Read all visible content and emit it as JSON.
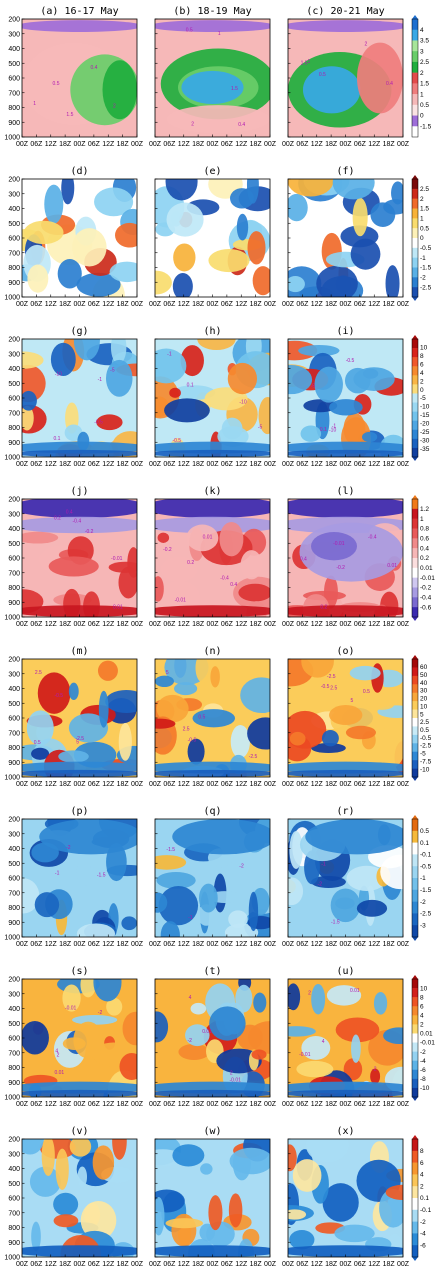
{
  "figure": {
    "columns": [
      "(a) 16-17 May",
      "(b) 18-19 May",
      "(c) 20-21 May"
    ],
    "x_tick_labels": [
      "00Z",
      "06Z",
      "12Z",
      "18Z",
      "00Z",
      "06Z",
      "12Z",
      "18Z",
      "00Z"
    ],
    "y_tick_labels": [
      "200",
      "300",
      "400",
      "500",
      "600",
      "700",
      "800",
      "900",
      "1000"
    ]
  },
  "chart_data": [
    {
      "type": "heatmap",
      "row": 1,
      "panels": [
        "(a) 16-17 May",
        "(b) 18-19 May",
        "(c) 20-21 May"
      ],
      "colorbar": [
        "4",
        "3.5",
        "3",
        "2.5",
        "2",
        "1.5",
        "1",
        "0.5",
        "0",
        "-1.5"
      ],
      "palette": [
        "#ffffff",
        "#9e6dd8",
        "#fbe3e3",
        "#f6b8b8",
        "#ef7d7d",
        "#e34b4b",
        "#1fae3d",
        "#69cd69",
        "#a7e59a",
        "#37a8e6",
        "#1e6fd0"
      ],
      "contour_labels": [
        "0.5",
        "2",
        "1.5",
        "0.4",
        "1"
      ]
    },
    {
      "type": "heatmap",
      "row": 2,
      "panels": [
        "(d)",
        "(e)",
        "(f)"
      ],
      "colorbar": [
        "2.5",
        "2",
        "1.5",
        "1",
        "0.5",
        "0",
        "-0.5",
        "-1",
        "-1.5",
        "-2",
        "-2.5"
      ],
      "palette": [
        "#7a0a0a",
        "#cc2a1a",
        "#f06a2a",
        "#f7b23a",
        "#f9dc6e",
        "#fdf1b8",
        "#ffffff",
        "#bfe8f7",
        "#8dd2f2",
        "#59b0e6",
        "#2b7fd0",
        "#1a4fb0"
      ],
      "contour_labels": []
    },
    {
      "type": "heatmap",
      "row": 3,
      "panels": [
        "(g)",
        "(h)",
        "(i)"
      ],
      "colorbar": [
        "10",
        "8",
        "6",
        "4",
        "2",
        "0",
        "-5",
        "-10",
        "-15",
        "-20",
        "-25",
        "-30",
        "-35"
      ],
      "palette": [
        "#a80a0a",
        "#d8231a",
        "#f0582a",
        "#f68a2f",
        "#f9b545",
        "#fbdc7a",
        "#bfe8f5",
        "#9ad8f2",
        "#72c3ec",
        "#4ea6e2",
        "#2e85d4",
        "#1a62c0",
        "#103fa0"
      ],
      "contour_labels": [
        "0.1",
        "-0.5",
        "-1",
        "-5",
        "-10"
      ]
    },
    {
      "type": "heatmap",
      "row": 4,
      "panels": [
        "(j)",
        "(k)",
        "(l)"
      ],
      "colorbar": [
        "1.2",
        "1",
        "0.8",
        "0.6",
        "0.4",
        "0.2",
        "0.01",
        "-0.01",
        "-0.2",
        "-0.4",
        "-0.6"
      ],
      "palette": [
        "#f07a1a",
        "#c8161f",
        "#dc3434",
        "#e85a5a",
        "#f08a8a",
        "#f6b6b6",
        "#fbdede",
        "#ffffff",
        "#cfc7f0",
        "#a79be2",
        "#7a6ad0",
        "#3b2ab0"
      ],
      "contour_labels": [
        "0.2",
        "-0.2",
        "0.4",
        "-0.4",
        "0.01",
        "-0.01"
      ]
    },
    {
      "type": "heatmap",
      "row": 5,
      "panels": [
        "(m)",
        "(n)",
        "(o)"
      ],
      "colorbar": [
        "60",
        "50",
        "40",
        "30",
        "20",
        "10",
        "5",
        "2.5",
        "0.5",
        "-0.5",
        "-2.5",
        "-5",
        "-7.5",
        "-10"
      ],
      "palette": [
        "#a30a0a",
        "#d01a18",
        "#ec4a22",
        "#f47a2a",
        "#f8a63a",
        "#fbcc5a",
        "#fde59a",
        "#ffffff",
        "#c7ebf7",
        "#93d3f1",
        "#5fb3e6",
        "#2e88d5",
        "#1a5fbf",
        "#0e3a9e"
      ],
      "contour_labels": [
        "-0.5",
        "-2.5",
        "0.5",
        "2.5",
        "5"
      ]
    },
    {
      "type": "heatmap",
      "row": 6,
      "panels": [
        "(p)",
        "(q)",
        "(r)"
      ],
      "colorbar": [
        "0.5",
        "0.1",
        "-0.1",
        "-0.5",
        "-1",
        "-1.5",
        "-2",
        "-2.5",
        "-3"
      ],
      "palette": [
        "#e36a10",
        "#f6b93a",
        "#ffffff",
        "#bfe6f6",
        "#9ad5f1",
        "#72c0ea",
        "#4ea6e0",
        "#2e87d2",
        "#1a66c0",
        "#0f48a8"
      ],
      "contour_labels": [
        "-1",
        "-2",
        "-1.5"
      ]
    },
    {
      "type": "heatmap",
      "row": 7,
      "panels": [
        "(s)",
        "(t)",
        "(u)"
      ],
      "colorbar": [
        "10",
        "8",
        "6",
        "4",
        "2",
        "0.01",
        "-0.01",
        "-2",
        "-4",
        "-6",
        "-8",
        "-10"
      ],
      "palette": [
        "#a50a0a",
        "#d2201a",
        "#ee5424",
        "#f5892e",
        "#f9b43e",
        "#fbd970",
        "#ffffff",
        "#c4e8f6",
        "#94d2f1",
        "#5cb2e6",
        "#2d86d3",
        "#1a5fbd",
        "#0e3a9c"
      ],
      "contour_labels": [
        "4",
        "2",
        "-0.01",
        "0.01",
        "-2"
      ]
    },
    {
      "type": "heatmap",
      "row": 8,
      "panels": [
        "(v)",
        "(w)",
        "(x)"
      ],
      "colorbar": [
        "8",
        "6",
        "4",
        "2",
        "0.1",
        "-0.1",
        "-2",
        "-4",
        "-6"
      ],
      "palette": [
        "#c51818",
        "#ef5a24",
        "#f7962f",
        "#fbc557",
        "#fde6a0",
        "#ffffff",
        "#a9dcf4",
        "#66b9ea",
        "#2b8bd7",
        "#125fc0"
      ],
      "contour_labels": []
    }
  ]
}
